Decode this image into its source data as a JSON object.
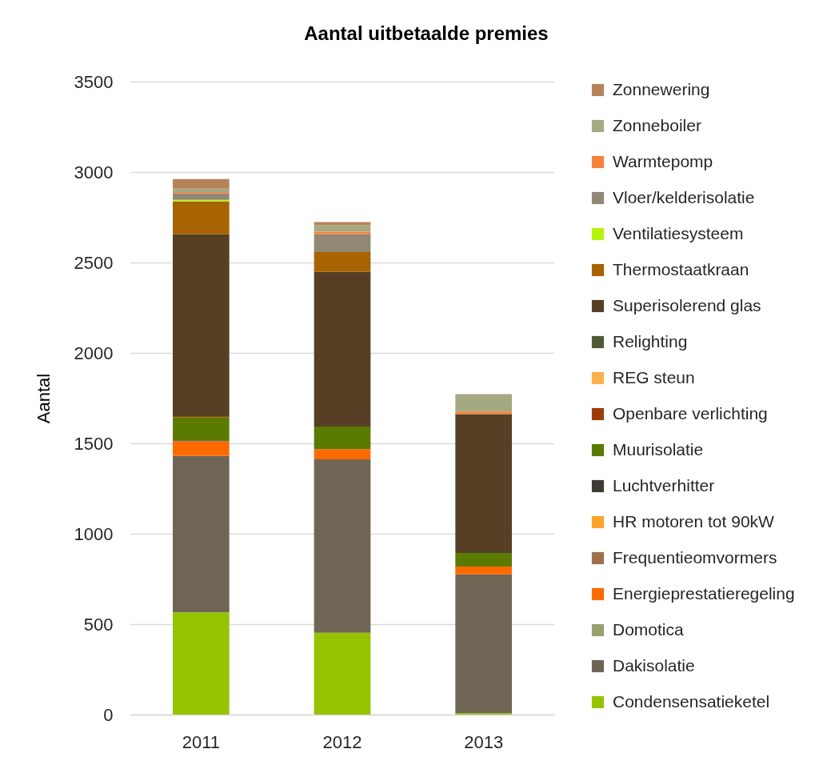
{
  "chart_data": {
    "type": "bar",
    "title": "Aantal uitbetaalde premies",
    "ylabel": "Aantal",
    "categories": [
      "2011",
      "2012",
      "2013"
    ],
    "stacked": true,
    "series": [
      {
        "name": "Condensensatieketel",
        "color": "#96c300",
        "values": [
          565,
          452,
          8
        ]
      },
      {
        "name": "Dakisolatie",
        "color": "#706555",
        "values": [
          865,
          960,
          767
        ]
      },
      {
        "name": "Domotica",
        "color": "#98a06e",
        "values": [
          null,
          null,
          null
        ]
      },
      {
        "name": "Energieprestatieregeling",
        "color": "#ff6a00",
        "values": [
          82,
          56,
          44
        ]
      },
      {
        "name": "Frequentieomvormers",
        "color": "#a0704a",
        "values": [
          null,
          null,
          null
        ]
      },
      {
        "name": "HR motoren tot 90kW",
        "color": "#fba32a",
        "values": [
          null,
          null,
          null
        ]
      },
      {
        "name": "Luchtverhitter",
        "color": "#3d3a33",
        "values": [
          5,
          null,
          null
        ]
      },
      {
        "name": "Muurisolatie",
        "color": "#5a7a00",
        "values": [
          128,
          125,
          75
        ]
      },
      {
        "name": "Openbare verlichting",
        "color": "#9b3c0a",
        "values": [
          5,
          null,
          null
        ]
      },
      {
        "name": "REG steun",
        "color": "#fbb050",
        "values": [
          null,
          null,
          null
        ]
      },
      {
        "name": "Relighting",
        "color": "#4f5b36",
        "values": [
          null,
          null,
          null
        ]
      },
      {
        "name": "Superisolerend glas",
        "color": "#573f26",
        "values": [
          1006,
          855,
          767
        ]
      },
      {
        "name": "Thermostaatkraan",
        "color": "#a86303",
        "values": [
          181,
          110,
          null
        ]
      },
      {
        "name": "Ventilatiesysteem",
        "color": "#b5f20f",
        "values": [
          9,
          null,
          null
        ]
      },
      {
        "name": "Vloer/kelderisolatie",
        "color": "#928675",
        "values": [
          37,
          99,
          null
        ]
      },
      {
        "name": "Warmtepomp",
        "color": "#f6823b",
        "values": [
          6,
          13,
          15
        ]
      },
      {
        "name": "Zonneboiler",
        "color": "#a5a982",
        "values": [
          19,
          36,
          96
        ]
      },
      {
        "name": "Zonnewering",
        "color": "#b5835a",
        "values": [
          53,
          17,
          null
        ]
      }
    ],
    "ylim": [
      0,
      3500
    ],
    "yticks": [
      0,
      500,
      1000,
      1500,
      2000,
      2500,
      3000,
      3500
    ],
    "grid": "y",
    "legend": "right"
  }
}
